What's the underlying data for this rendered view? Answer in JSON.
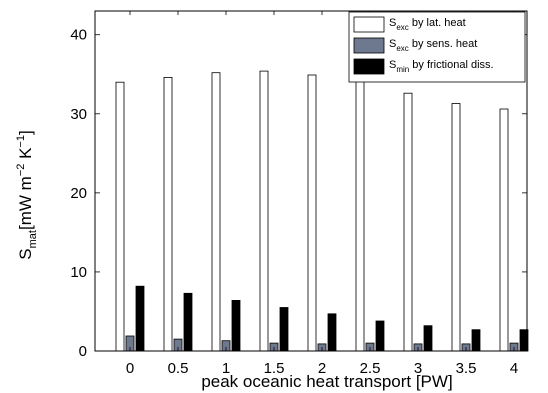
{
  "chart_data": {
    "type": "bar",
    "categories": [
      "0",
      "0.5",
      "1",
      "1.5",
      "2",
      "2.5",
      "3",
      "3.5",
      "4"
    ],
    "series": [
      {
        "name": "S_exc by lat. heat",
        "symbol": "S",
        "subscript": "exc",
        "label": "by lat. heat",
        "color": "#ffffff",
        "values": [
          34.0,
          34.6,
          35.2,
          35.4,
          34.9,
          34.1,
          32.6,
          31.3,
          30.6
        ]
      },
      {
        "name": "S_exc by sens. heat",
        "symbol": "S",
        "subscript": "exc",
        "label": "by sens. heat",
        "color": "#6e788e",
        "values": [
          1.9,
          1.5,
          1.3,
          1.0,
          0.9,
          1.0,
          0.9,
          0.9,
          1.0
        ]
      },
      {
        "name": "S_min by frictional diss.",
        "symbol": "S",
        "subscript": "min",
        "label": "by frictional diss.",
        "color": "#000000",
        "values": [
          8.2,
          7.3,
          6.4,
          5.5,
          4.7,
          3.8,
          3.2,
          2.7,
          2.7
        ]
      }
    ],
    "xlabel": "peak oceanic heat transport   [PW]",
    "ylabel": {
      "symbol": "S",
      "subscript": "mat",
      "open": "[mW m",
      "exp1": "−2",
      "mid": " K",
      "exp2": "−1",
      "close": "]"
    },
    "ylim": [
      0,
      43
    ],
    "yticks": [
      "0",
      "10",
      "20",
      "30",
      "40"
    ],
    "ytick_values": [
      0,
      10,
      20,
      30,
      40
    ],
    "legend": "top-right",
    "grid": false
  }
}
